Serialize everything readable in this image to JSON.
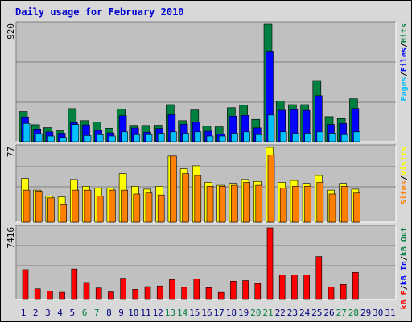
{
  "chart_data": {
    "type": "bar",
    "title": "Daily usage for February 2010",
    "days": [
      "1",
      "2",
      "3",
      "4",
      "5",
      "6",
      "7",
      "8",
      "9",
      "10",
      "11",
      "12",
      "13",
      "14",
      "15",
      "16",
      "17",
      "18",
      "19",
      "20",
      "21",
      "22",
      "23",
      "24",
      "25",
      "26",
      "27",
      "28",
      "29",
      "30",
      "31"
    ],
    "weekend_days": [
      6,
      7,
      13,
      14,
      20,
      21,
      27,
      28
    ],
    "colors": {
      "frame_bg": "#d8d8d8",
      "panel_bg": "#c0c0c0",
      "grid": "#808080",
      "title": "#0000cc",
      "hits": "#008040",
      "files": "#0000ff",
      "pages": "#00c0ff",
      "visits": "#ffff00",
      "sites": "#ff8000",
      "kbin": "#0000ff",
      "kbout": "#008040",
      "kbf": "#ff0000",
      "weekday_label": "#000080",
      "weekend_label": "#008040"
    },
    "panels": [
      {
        "name": "hits-panel",
        "ymax": 920,
        "ymax_label": "920",
        "legend": [
          {
            "text": "Pages",
            "color": "#00c0ff"
          },
          {
            "text": "Files",
            "color": "#0000ff"
          },
          {
            "text": "Hits",
            "color": "#008040"
          }
        ],
        "series": [
          {
            "name": "Hits",
            "color": "#008040",
            "values": [
              236,
              133,
              110,
              85,
              259,
              165,
              154,
              105,
              255,
              128,
              127,
              129,
              290,
              165,
              248,
              121,
              116,
              266,
              285,
              175,
              920,
              319,
              290,
              290,
              479,
              196,
              181,
              336,
              0,
              0,
              0
            ]
          },
          {
            "name": "Files",
            "color": "#0000ff",
            "values": [
              194,
              99,
              77,
              66,
              150,
              132,
              88,
              69,
              203,
              107,
              74,
              103,
              211,
              137,
              152,
              82,
              60,
              200,
              206,
              108,
              709,
              246,
              251,
              245,
              360,
              135,
              143,
              260,
              0,
              0,
              0
            ]
          },
          {
            "name": "Pages",
            "color": "#00c0ff",
            "values": [
              143,
              63,
              44,
              33,
              135,
              48,
              55,
              44,
              77,
              55,
              55,
              66,
              77,
              66,
              77,
              44,
              44,
              66,
              77,
              55,
              209,
              77,
              66,
              66,
              77,
              66,
              55,
              77,
              0,
              0,
              0
            ]
          }
        ]
      },
      {
        "name": "visits-panel",
        "ymax": 77,
        "ymax_label": "77",
        "legend": [
          {
            "text": "Sites",
            "color": "#ff8000"
          },
          {
            "text": "Visits",
            "color": "#ffff00"
          }
        ],
        "series": [
          {
            "name": "Visits",
            "color": "#ffff00",
            "values": [
              45,
              33,
              27,
              26,
              44,
              37,
              35,
              35,
              50,
              37,
              34,
              37,
              68,
              55,
              58,
              41,
              38,
              40,
              44,
              42,
              77,
              41,
              43,
              40,
              48,
              33,
              40,
              34,
              0,
              0,
              0
            ]
          },
          {
            "name": "Sites",
            "color": "#ff8000",
            "values": [
              33,
              32,
              25,
              18,
              33,
              33,
              27,
              33,
              33,
              29,
              30,
              28,
              68,
              50,
              48,
              37,
              37,
              38,
              41,
              38,
              69,
              35,
              37,
              37,
              41,
              29,
              37,
              30,
              0,
              0,
              0
            ]
          }
        ]
      },
      {
        "name": "kbytes-panel",
        "ymax": 7416,
        "ymax_label": "7416",
        "legend": [
          {
            "text": "kB F",
            "color": "#ff0000"
          },
          {
            "text": "kB In",
            "color": "#0000ff"
          },
          {
            "text": "kB Out",
            "color": "#008040"
          }
        ],
        "series": [
          {
            "name": "kB F",
            "color": "#ff0000",
            "values": [
              3088,
              1103,
              857,
              743,
              3155,
              1757,
              1192,
              785,
              2201,
              1052,
              1330,
              1397,
              2051,
              1268,
              2130,
              1220,
              737,
              1895,
              1957,
              1650,
              7416,
              2546,
              2538,
              2544,
              4449,
              1300,
              1561,
              2810,
              0,
              0,
              0
            ]
          }
        ]
      }
    ]
  }
}
